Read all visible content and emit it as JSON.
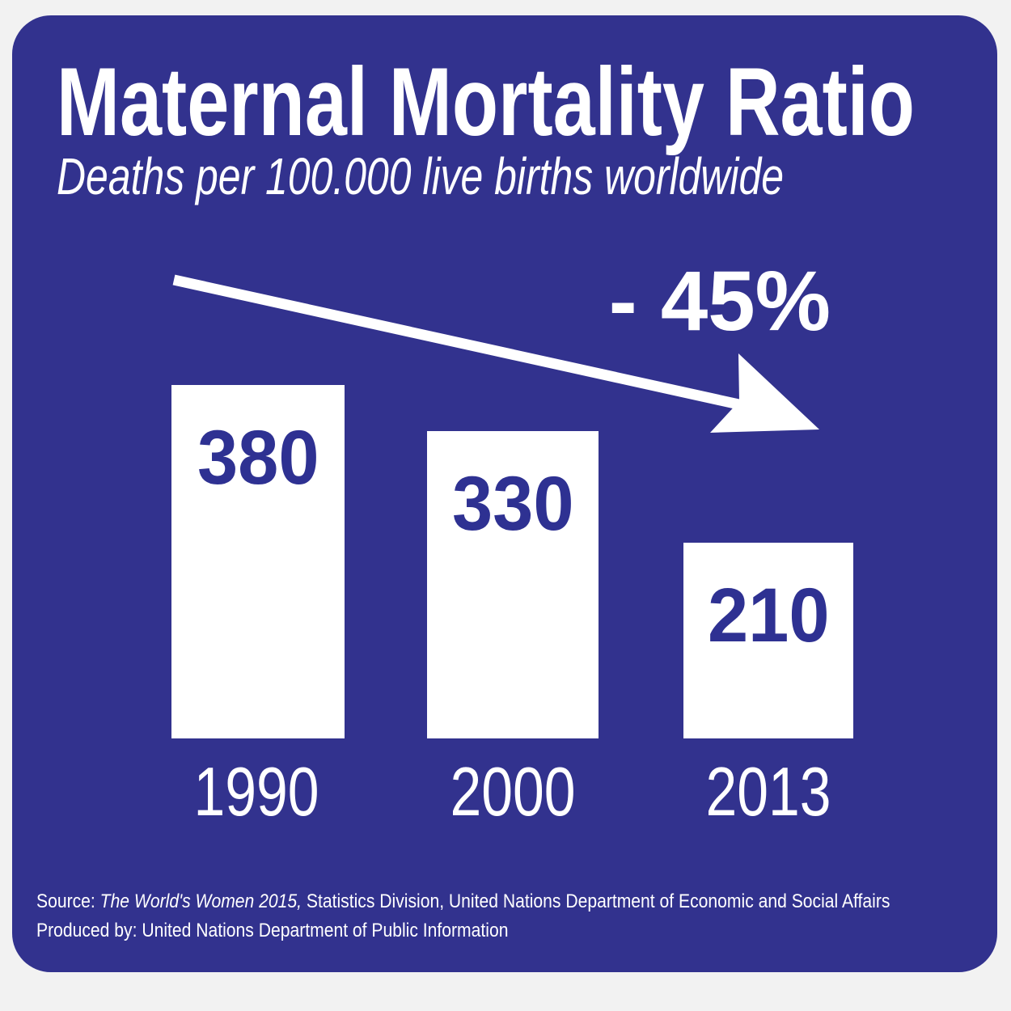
{
  "header": {
    "title": "Maternal Mortality Ratio",
    "subtitle": "Deaths per 100.000 live births worldwide"
  },
  "annotation": {
    "change_label": "- 45%"
  },
  "chart_data": {
    "type": "bar",
    "title": "Maternal Mortality Ratio",
    "subtitle": "Deaths per 100.000 live births worldwide",
    "categories": [
      "1990",
      "2000",
      "2013"
    ],
    "values": [
      380,
      330,
      210
    ],
    "unit": "deaths per 100,000 live births",
    "annotation": "- 45%",
    "xlabel": "",
    "ylabel": "Deaths per 100.000 live births worldwide",
    "ylim": [
      0,
      380
    ],
    "grid": false,
    "legend": "none",
    "bar_color": "#FFFFFF",
    "value_label_color": "#2E3192",
    "axis_label_color": "#FFFFFF",
    "background_color": "#32328E"
  },
  "footer": {
    "source_prefix": "Source: ",
    "source_italic": "The World's Women 2015,",
    "source_rest": " Statistics Division, United Nations Department of Economic and Social Affairs",
    "produced_by": "Produced by: United Nations Department of Public Information"
  },
  "colors": {
    "card_background": "#32328E",
    "bar_fill": "#FFFFFF",
    "value_text": "#2E3192",
    "text": "#FFFFFF"
  }
}
